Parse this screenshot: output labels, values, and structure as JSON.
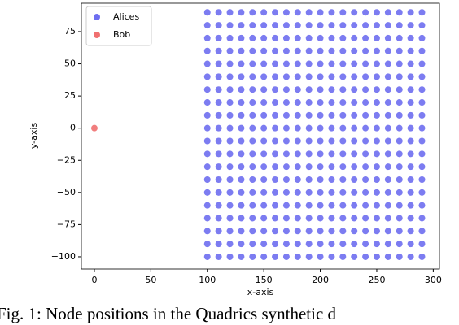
{
  "chart_data": {
    "type": "scatter",
    "xlabel": "x-axis",
    "ylabel": "y-axis",
    "caption": "Fig. 1: Node positions in the Quadrics synthetic d",
    "xlim": [
      -11.5,
      305.5
    ],
    "ylim": [
      -109.5,
      97.1
    ],
    "xticks": [
      0,
      50,
      100,
      150,
      200,
      250,
      300
    ],
    "yticks": [
      {
        "value": -100,
        "label": "−100"
      },
      {
        "value": -75,
        "label": "−75"
      },
      {
        "value": -50,
        "label": "−50"
      },
      {
        "value": -25,
        "label": "−25"
      },
      0,
      25,
      50,
      75
    ],
    "legend": "upper left",
    "series": [
      {
        "name": "Alices",
        "color": "#6e6ef0",
        "x": [
          100,
          100,
          100,
          100,
          100,
          100,
          100,
          100,
          100,
          100,
          100,
          100,
          100,
          100,
          100,
          100,
          100,
          100,
          100,
          100,
          110,
          110,
          110,
          110,
          110,
          110,
          110,
          110,
          110,
          110,
          110,
          110,
          110,
          110,
          110,
          110,
          110,
          110,
          110,
          110,
          120,
          120,
          120,
          120,
          120,
          120,
          120,
          120,
          120,
          120,
          120,
          120,
          120,
          120,
          120,
          120,
          120,
          120,
          120,
          120,
          130,
          130,
          130,
          130,
          130,
          130,
          130,
          130,
          130,
          130,
          130,
          130,
          130,
          130,
          130,
          130,
          130,
          130,
          130,
          130,
          140,
          140,
          140,
          140,
          140,
          140,
          140,
          140,
          140,
          140,
          140,
          140,
          140,
          140,
          140,
          140,
          140,
          140,
          140,
          140,
          150,
          150,
          150,
          150,
          150,
          150,
          150,
          150,
          150,
          150,
          150,
          150,
          150,
          150,
          150,
          150,
          150,
          150,
          150,
          150,
          160,
          160,
          160,
          160,
          160,
          160,
          160,
          160,
          160,
          160,
          160,
          160,
          160,
          160,
          160,
          160,
          160,
          160,
          160,
          160,
          170,
          170,
          170,
          170,
          170,
          170,
          170,
          170,
          170,
          170,
          170,
          170,
          170,
          170,
          170,
          170,
          170,
          170,
          170,
          170,
          180,
          180,
          180,
          180,
          180,
          180,
          180,
          180,
          180,
          180,
          180,
          180,
          180,
          180,
          180,
          180,
          180,
          180,
          180,
          180,
          190,
          190,
          190,
          190,
          190,
          190,
          190,
          190,
          190,
          190,
          190,
          190,
          190,
          190,
          190,
          190,
          190,
          190,
          190,
          190,
          200,
          200,
          200,
          200,
          200,
          200,
          200,
          200,
          200,
          200,
          200,
          200,
          200,
          200,
          200,
          200,
          200,
          200,
          200,
          200,
          210,
          210,
          210,
          210,
          210,
          210,
          210,
          210,
          210,
          210,
          210,
          210,
          210,
          210,
          210,
          210,
          210,
          210,
          210,
          210,
          220,
          220,
          220,
          220,
          220,
          220,
          220,
          220,
          220,
          220,
          220,
          220,
          220,
          220,
          220,
          220,
          220,
          220,
          220,
          220,
          230,
          230,
          230,
          230,
          230,
          230,
          230,
          230,
          230,
          230,
          230,
          230,
          230,
          230,
          230,
          230,
          230,
          230,
          230,
          230,
          240,
          240,
          240,
          240,
          240,
          240,
          240,
          240,
          240,
          240,
          240,
          240,
          240,
          240,
          240,
          240,
          240,
          240,
          240,
          240,
          250,
          250,
          250,
          250,
          250,
          250,
          250,
          250,
          250,
          250,
          250,
          250,
          250,
          250,
          250,
          250,
          250,
          250,
          250,
          250,
          260,
          260,
          260,
          260,
          260,
          260,
          260,
          260,
          260,
          260,
          260,
          260,
          260,
          260,
          260,
          260,
          260,
          260,
          260,
          260,
          270,
          270,
          270,
          270,
          270,
          270,
          270,
          270,
          270,
          270,
          270,
          270,
          270,
          270,
          270,
          270,
          270,
          270,
          270,
          270,
          280,
          280,
          280,
          280,
          280,
          280,
          280,
          280,
          280,
          280,
          280,
          280,
          280,
          280,
          280,
          280,
          280,
          280,
          280,
          280,
          290,
          290,
          290,
          290,
          290,
          290,
          290,
          290,
          290,
          290,
          290,
          290,
          290,
          290,
          290,
          290,
          290,
          290,
          290,
          290
        ],
        "values": [
          -100,
          -90,
          -80,
          -70,
          -60,
          -50,
          -40,
          -30,
          -20,
          -10,
          0,
          10,
          20,
          30,
          40,
          50,
          60,
          70,
          80,
          90,
          -100,
          -90,
          -80,
          -70,
          -60,
          -50,
          -40,
          -30,
          -20,
          -10,
          0,
          10,
          20,
          30,
          40,
          50,
          60,
          70,
          80,
          90,
          -100,
          -90,
          -80,
          -70,
          -60,
          -50,
          -40,
          -30,
          -20,
          -10,
          0,
          10,
          20,
          30,
          40,
          50,
          60,
          70,
          80,
          90,
          -100,
          -90,
          -80,
          -70,
          -60,
          -50,
          -40,
          -30,
          -20,
          -10,
          0,
          10,
          20,
          30,
          40,
          50,
          60,
          70,
          80,
          90,
          -100,
          -90,
          -80,
          -70,
          -60,
          -50,
          -40,
          -30,
          -20,
          -10,
          0,
          10,
          20,
          30,
          40,
          50,
          60,
          70,
          80,
          90,
          -100,
          -90,
          -80,
          -70,
          -60,
          -50,
          -40,
          -30,
          -20,
          -10,
          0,
          10,
          20,
          30,
          40,
          50,
          60,
          70,
          80,
          90,
          -100,
          -90,
          -80,
          -70,
          -60,
          -50,
          -40,
          -30,
          -20,
          -10,
          0,
          10,
          20,
          30,
          40,
          50,
          60,
          70,
          80,
          90,
          -100,
          -90,
          -80,
          -70,
          -60,
          -50,
          -40,
          -30,
          -20,
          -10,
          0,
          10,
          20,
          30,
          40,
          50,
          60,
          70,
          80,
          90,
          -100,
          -90,
          -80,
          -70,
          -60,
          -50,
          -40,
          -30,
          -20,
          -10,
          0,
          10,
          20,
          30,
          40,
          50,
          60,
          70,
          80,
          90,
          -100,
          -90,
          -80,
          -70,
          -60,
          -50,
          -40,
          -30,
          -20,
          -10,
          0,
          10,
          20,
          30,
          40,
          50,
          60,
          70,
          80,
          90,
          -100,
          -90,
          -80,
          -70,
          -60,
          -50,
          -40,
          -30,
          -20,
          -10,
          0,
          10,
          20,
          30,
          40,
          50,
          60,
          70,
          80,
          90,
          -100,
          -90,
          -80,
          -70,
          -60,
          -50,
          -40,
          -30,
          -20,
          -10,
          0,
          10,
          20,
          30,
          40,
          50,
          60,
          70,
          80,
          90,
          -100,
          -90,
          -80,
          -70,
          -60,
          -50,
          -40,
          -30,
          -20,
          -10,
          0,
          10,
          20,
          30,
          40,
          50,
          60,
          70,
          80,
          90,
          -100,
          -90,
          -80,
          -70,
          -60,
          -50,
          -40,
          -30,
          -20,
          -10,
          0,
          10,
          20,
          30,
          40,
          50,
          60,
          70,
          80,
          90,
          -100,
          -90,
          -80,
          -70,
          -60,
          -50,
          -40,
          -30,
          -20,
          -10,
          0,
          10,
          20,
          30,
          40,
          50,
          60,
          70,
          80,
          90,
          -100,
          -90,
          -80,
          -70,
          -60,
          -50,
          -40,
          -30,
          -20,
          -10,
          0,
          10,
          20,
          30,
          40,
          50,
          60,
          70,
          80,
          90,
          -100,
          -90,
          -80,
          -70,
          -60,
          -50,
          -40,
          -30,
          -20,
          -10,
          0,
          10,
          20,
          30,
          40,
          50,
          60,
          70,
          80,
          90,
          -100,
          -90,
          -80,
          -70,
          -60,
          -50,
          -40,
          -30,
          -20,
          -10,
          0,
          10,
          20,
          30,
          40,
          50,
          60,
          70,
          80,
          90,
          -100,
          -90,
          -80,
          -70,
          -60,
          -50,
          -40,
          -30,
          -20,
          -10,
          0,
          10,
          20,
          30,
          40,
          50,
          60,
          70,
          80,
          90,
          -100,
          -90,
          -80,
          -70,
          -60,
          -50,
          -40,
          -30,
          -20,
          -10,
          0,
          10,
          20,
          30,
          40,
          50,
          60,
          70,
          80,
          90
        ]
      },
      {
        "name": "Bob",
        "color": "#f07070",
        "x": [
          0
        ],
        "values": [
          0
        ]
      }
    ]
  }
}
